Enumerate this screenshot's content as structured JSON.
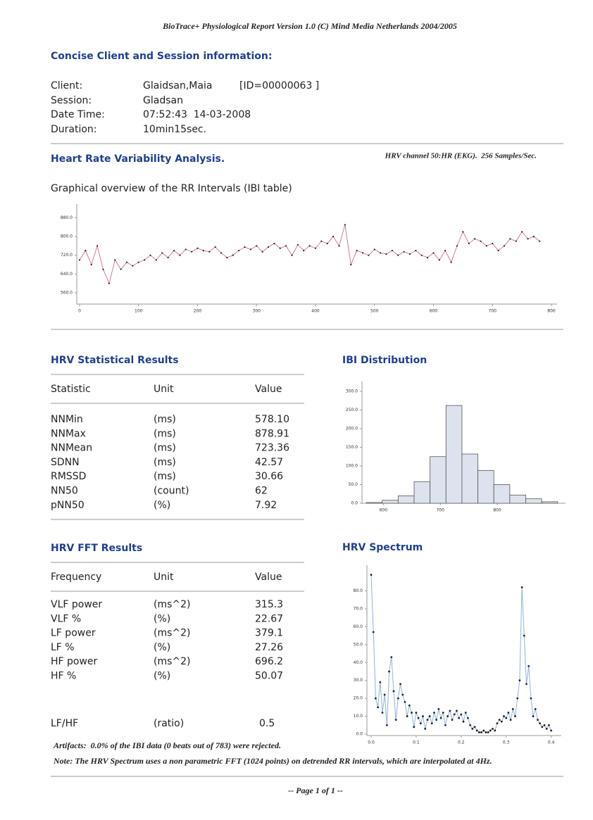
{
  "header": "BioTrace+ Physiological Report Version 1.0 (C) Mind Media Netherlands 2004/2005",
  "session": {
    "title": "Concise Client and Session information:",
    "rows": [
      {
        "label": "Client:",
        "value": "Glaidsan,Maia",
        "extra": "[ID=00000063 ]"
      },
      {
        "label": "Session:",
        "value": "Gladsan"
      },
      {
        "label": "Date Time:",
        "value": "07:52:43  14-03-2008"
      },
      {
        "label": "Duration:",
        "value": "10min15sec."
      }
    ]
  },
  "hrv": {
    "title": "Heart Rate Variability Analysis.",
    "channel": "HRV channel 50:HR (EKG).  256 Samples/Sec."
  },
  "stats": {
    "title": "HRV Statistical Results",
    "headers": [
      "Statistic",
      "Unit",
      "Value"
    ],
    "rows": [
      [
        "NNMin",
        "(ms)",
        "578.10"
      ],
      [
        "NNMax",
        "(ms)",
        "878.91"
      ],
      [
        "NNMean",
        "(ms)",
        "723.36"
      ],
      [
        "SDNN",
        "(ms)",
        "42.57"
      ],
      [
        "RMSSD",
        "(ms)",
        "30.66"
      ],
      [
        "NN50",
        "(count)",
        "62"
      ],
      [
        "pNN50",
        "(%)",
        "7.92"
      ]
    ]
  },
  "fft": {
    "title": "HRV FFT Results",
    "headers": [
      "Frequency",
      "Unit",
      "Value"
    ],
    "rows": [
      [
        "VLF power",
        "(ms^2)",
        "315.3"
      ],
      [
        "VLF %",
        "(%)",
        "22.67"
      ],
      [
        "LF power",
        "(ms^2)",
        "379.1"
      ],
      [
        "LF %",
        "(%)",
        "27.26"
      ],
      [
        "HF power",
        "(ms^2)",
        "696.2"
      ],
      [
        "HF %",
        "(%)",
        "50.07"
      ]
    ],
    "ratio": [
      "LF/HF",
      "(ratio)",
      "0.5"
    ]
  },
  "notes": [
    "Artifacts:  0.0% of the IBI data (0 beats out of 783) were rejected.",
    "Note: The HRV Spectrum uses a non parametric FFT (1024 points) on detrended RR intervals, which are interpolated at 4Hz."
  ],
  "footer": "-- Page 1 of 1 --",
  "chart_data": [
    {
      "type": "line",
      "title": "Graphical overview of the RR Intervals (IBI table)",
      "color": "#d9789a",
      "x": [
        0,
        10,
        20,
        30,
        40,
        50,
        60,
        70,
        80,
        90,
        100,
        110,
        120,
        130,
        140,
        150,
        160,
        170,
        180,
        190,
        200,
        210,
        220,
        230,
        240,
        250,
        260,
        270,
        280,
        290,
        300,
        310,
        320,
        330,
        340,
        350,
        360,
        370,
        380,
        390,
        400,
        410,
        420,
        430,
        440,
        450,
        460,
        470,
        480,
        490,
        500,
        510,
        520,
        530,
        540,
        550,
        560,
        570,
        580,
        590,
        600,
        610,
        620,
        630,
        640,
        650,
        660,
        670,
        680,
        690,
        700,
        710,
        720,
        730,
        740,
        750,
        760,
        770,
        780
      ],
      "values": [
        700,
        740,
        680,
        760,
        660,
        600,
        700,
        660,
        690,
        675,
        690,
        700,
        720,
        700,
        730,
        710,
        740,
        720,
        745,
        735,
        750,
        740,
        735,
        755,
        730,
        710,
        720,
        740,
        755,
        745,
        760,
        735,
        755,
        770,
        750,
        760,
        720,
        765,
        740,
        760,
        750,
        780,
        770,
        800,
        760,
        850,
        680,
        740,
        730,
        720,
        745,
        730,
        725,
        740,
        720,
        735,
        725,
        740,
        720,
        710,
        730,
        700,
        740,
        690,
        760,
        820,
        770,
        790,
        780,
        760,
        770,
        740,
        760,
        790,
        780,
        820,
        790,
        800,
        780
      ],
      "xlim": [
        0,
        800
      ],
      "ylim": [
        530,
        920
      ],
      "xticks": [
        0,
        100,
        200,
        300,
        400,
        500,
        600,
        700,
        800
      ],
      "yticks": [
        {
          "value": 560,
          "label": "560.0"
        },
        {
          "value": 640,
          "label": "640.0"
        },
        {
          "value": 720,
          "label": "720.0"
        },
        {
          "value": 800,
          "label": "800.0"
        },
        {
          "value": 880,
          "label": "880.0"
        }
      ]
    },
    {
      "type": "histogram",
      "title": "IBI Distribution",
      "color": "#dde3ee",
      "bins": [
        570,
        598,
        626,
        654,
        682,
        710,
        738,
        766,
        794,
        822,
        850,
        878,
        906
      ],
      "counts": [
        2,
        8,
        20,
        58,
        125,
        262,
        132,
        88,
        50,
        22,
        12,
        4
      ],
      "xlim": [
        560,
        910
      ],
      "ylim": [
        0,
        315
      ],
      "xticks": [
        600,
        700,
        800
      ],
      "yticks": [
        {
          "value": 0,
          "label": "0.0"
        },
        {
          "value": 50,
          "label": "50.0"
        },
        {
          "value": 100,
          "label": "100.0"
        },
        {
          "value": 150,
          "label": "150.0"
        },
        {
          "value": 200,
          "label": "200.0"
        },
        {
          "value": 250,
          "label": "250.0"
        },
        {
          "value": 300,
          "label": "300.0"
        }
      ]
    },
    {
      "type": "line",
      "title": "HRV Spectrum",
      "color": "#8fb3d9",
      "x": [
        0,
        0.005,
        0.01,
        0.015,
        0.02,
        0.025,
        0.03,
        0.035,
        0.04,
        0.045,
        0.05,
        0.055,
        0.06,
        0.065,
        0.07,
        0.075,
        0.08,
        0.085,
        0.09,
        0.095,
        0.1,
        0.105,
        0.11,
        0.115,
        0.12,
        0.125,
        0.13,
        0.135,
        0.14,
        0.145,
        0.15,
        0.155,
        0.16,
        0.165,
        0.17,
        0.175,
        0.18,
        0.185,
        0.19,
        0.195,
        0.2,
        0.205,
        0.21,
        0.215,
        0.22,
        0.225,
        0.23,
        0.235,
        0.24,
        0.245,
        0.25,
        0.255,
        0.26,
        0.265,
        0.27,
        0.275,
        0.28,
        0.285,
        0.29,
        0.295,
        0.3,
        0.305,
        0.31,
        0.315,
        0.32,
        0.325,
        0.33,
        0.335,
        0.34,
        0.345,
        0.35,
        0.355,
        0.36,
        0.365,
        0.37,
        0.375,
        0.38,
        0.385,
        0.39,
        0.395,
        0.4
      ],
      "values": [
        89,
        57,
        20,
        15,
        29,
        12,
        22,
        5,
        35,
        43,
        24,
        8,
        20,
        28,
        22,
        18,
        10,
        16,
        12,
        4,
        12,
        9,
        6,
        10,
        3,
        8,
        10,
        6,
        12,
        8,
        14,
        9,
        12,
        5,
        10,
        13,
        8,
        11,
        13,
        9,
        11,
        7,
        12,
        9,
        5,
        3,
        4,
        2,
        1,
        1,
        2,
        1,
        1,
        2,
        3,
        2,
        6,
        8,
        7,
        10,
        9,
        12,
        8,
        14,
        10,
        20,
        30,
        82,
        55,
        28,
        38,
        20,
        10,
        14,
        8,
        6,
        4,
        5,
        3,
        5,
        2
      ],
      "xlim": [
        0,
        0.41
      ],
      "ylim": [
        0,
        92
      ],
      "xticks": [
        {
          "value": 0,
          "label": "0.0"
        },
        0.1,
        0.2,
        0.3,
        0.4
      ],
      "yticks": [
        {
          "value": 0,
          "label": "0.0"
        },
        {
          "value": 10,
          "label": "10.0"
        },
        {
          "value": 20,
          "label": "20.0"
        },
        {
          "value": 30,
          "label": "30.0"
        },
        {
          "value": 40,
          "label": "40.0"
        },
        {
          "value": 50,
          "label": "50.0"
        },
        {
          "value": 60,
          "label": "60.0"
        },
        {
          "value": 70,
          "label": "70.0"
        },
        {
          "value": 80,
          "label": "80.0"
        }
      ]
    }
  ]
}
